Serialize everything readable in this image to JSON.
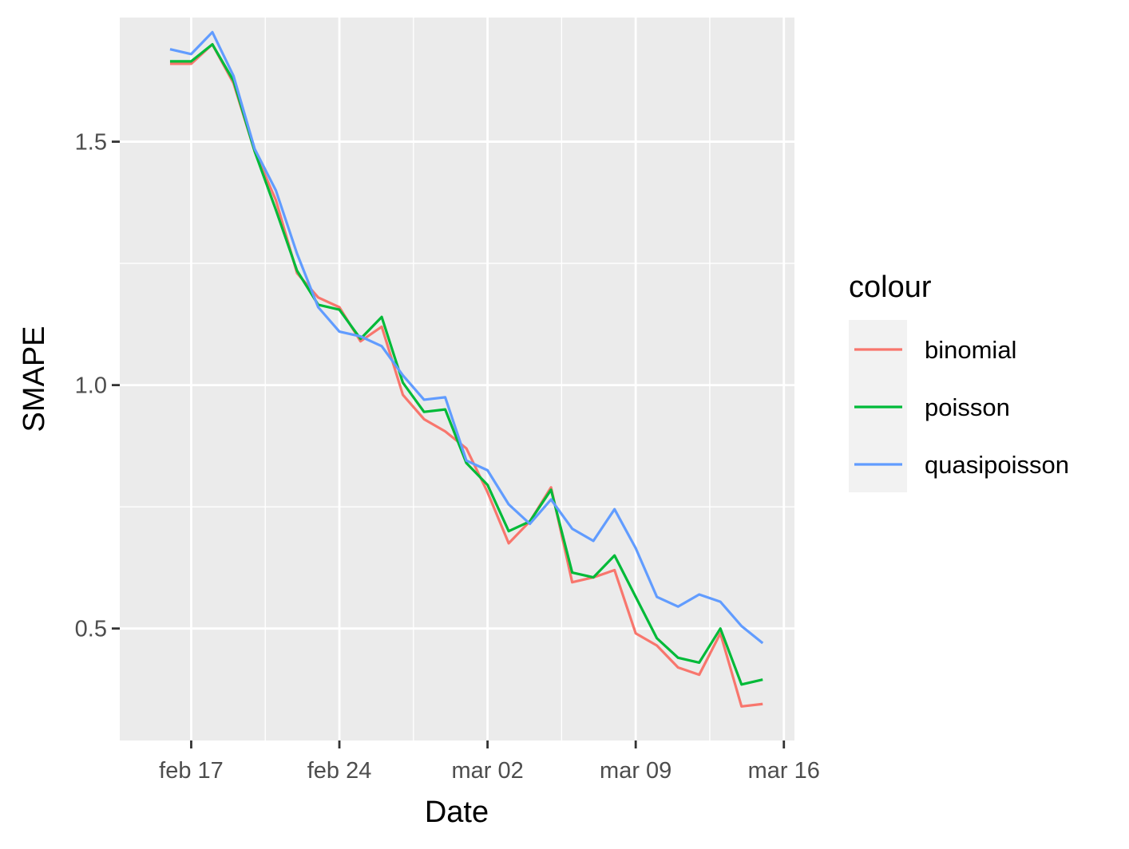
{
  "chart_data": {
    "type": "line",
    "xlabel": "Date",
    "ylabel": "SMAPE",
    "x_axis": {
      "kind": "date",
      "range": [
        "2020-02-13T15:00",
        "2020-03-16T12:00"
      ],
      "ticks": [
        {
          "date": "2020-02-17",
          "label": "feb 17"
        },
        {
          "date": "2020-02-24",
          "label": "feb 24"
        },
        {
          "date": "2020-03-02",
          "label": "mar 02"
        },
        {
          "date": "2020-03-09",
          "label": "mar 09"
        },
        {
          "date": "2020-03-16",
          "label": "mar 16"
        }
      ],
      "minor_ticks": [
        "2020-02-20T12:00",
        "2020-02-27T12:00",
        "2020-03-05T12:00",
        "2020-03-12T12:00"
      ]
    },
    "y_axis": {
      "range": [
        0.27,
        1.755
      ],
      "ticks": [
        {
          "value": 0.5,
          "label": "0.5"
        },
        {
          "value": 1.0,
          "label": "1.0"
        },
        {
          "value": 1.5,
          "label": "1.5"
        }
      ],
      "minor_ticks": [
        0.75,
        1.25
      ]
    },
    "grid": true,
    "panel_background": "#ebebeb",
    "grid_color": "#ffffff",
    "x": [
      "2020-02-16",
      "2020-02-17",
      "2020-02-18",
      "2020-02-19",
      "2020-02-20",
      "2020-02-21",
      "2020-02-22",
      "2020-02-23",
      "2020-02-24",
      "2020-02-25",
      "2020-02-26",
      "2020-02-27",
      "2020-02-28",
      "2020-02-29",
      "2020-03-01",
      "2020-03-02",
      "2020-03-03",
      "2020-03-04",
      "2020-03-05",
      "2020-03-06",
      "2020-03-07",
      "2020-03-08",
      "2020-03-09",
      "2020-03-10",
      "2020-03-11",
      "2020-03-12",
      "2020-03-13",
      "2020-03-14",
      "2020-03-15"
    ],
    "series": [
      {
        "name": "binomial",
        "color": "#F8766D",
        "values": [
          1.66,
          1.66,
          1.7,
          1.62,
          1.48,
          1.38,
          1.23,
          1.18,
          1.16,
          1.09,
          1.12,
          0.98,
          0.93,
          0.905,
          0.87,
          0.78,
          0.675,
          0.72,
          0.79,
          0.595,
          0.605,
          0.62,
          0.49,
          0.465,
          0.42,
          0.405,
          0.49,
          0.34,
          0.345
        ]
      },
      {
        "name": "poisson",
        "color": "#00BA38",
        "values": [
          1.665,
          1.665,
          1.7,
          1.625,
          1.48,
          1.36,
          1.235,
          1.165,
          1.155,
          1.095,
          1.14,
          1.005,
          0.945,
          0.95,
          0.84,
          0.795,
          0.7,
          0.72,
          0.785,
          0.615,
          0.605,
          0.65,
          0.565,
          0.48,
          0.44,
          0.43,
          0.5,
          0.385,
          0.395
        ]
      },
      {
        "name": "quasipoisson",
        "color": "#619CFF",
        "values": [
          1.69,
          1.68,
          1.725,
          1.635,
          1.485,
          1.4,
          1.27,
          1.16,
          1.11,
          1.1,
          1.08,
          1.02,
          0.97,
          0.975,
          0.845,
          0.825,
          0.755,
          0.715,
          0.765,
          0.705,
          0.68,
          0.745,
          0.665,
          0.565,
          0.545,
          0.57,
          0.555,
          0.505,
          0.47
        ]
      }
    ],
    "legend": {
      "title": "colour",
      "position": "right",
      "background": "#f2f2f2",
      "entries": [
        "binomial",
        "poisson",
        "quasipoisson"
      ]
    }
  }
}
